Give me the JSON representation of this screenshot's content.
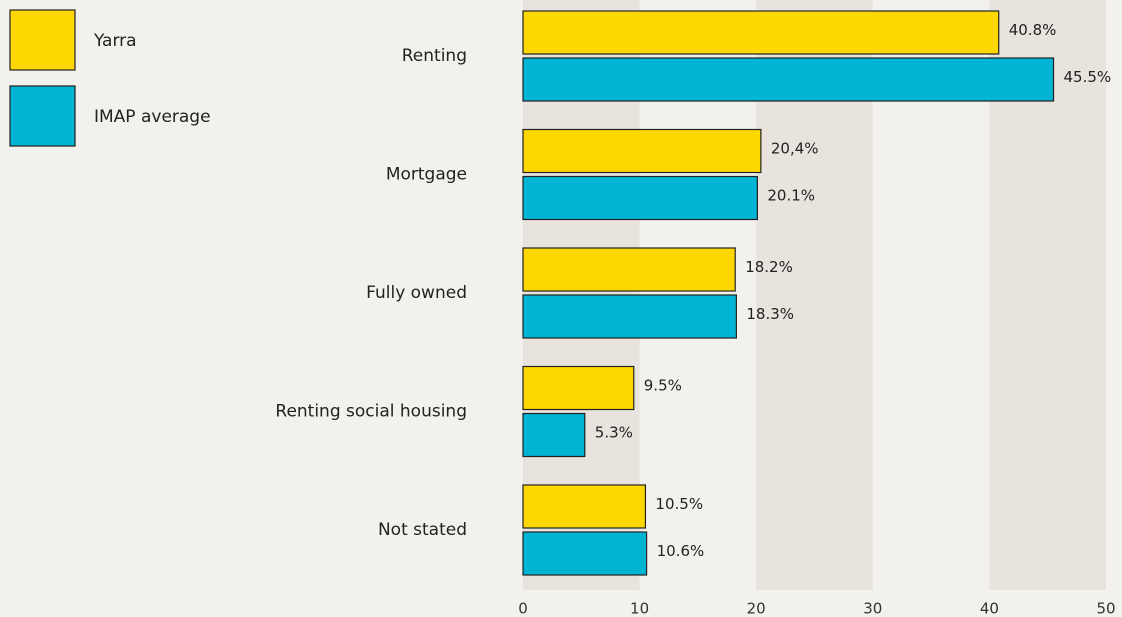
{
  "chart_data": {
    "type": "bar",
    "orientation": "horizontal",
    "categories": [
      "Renting",
      "Mortgage",
      "Fully owned",
      "Renting social housing",
      "Not stated"
    ],
    "series": [
      {
        "name": "Yarra",
        "color": "#ffd700",
        "values": [
          40.8,
          20.4,
          18.2,
          9.5,
          10.5
        ],
        "value_labels": [
          "40.8%",
          "20,4%",
          "18.2%",
          "9.5%",
          "10.5%"
        ]
      },
      {
        "name": "IMAP average",
        "color": "#00b4d4",
        "values": [
          45.5,
          20.1,
          18.3,
          5.3,
          10.6
        ],
        "value_labels": [
          "45.5%",
          "20.1%",
          "18.3%",
          "5.3%",
          "10.6%"
        ]
      }
    ],
    "xlim": [
      0,
      50
    ],
    "xticks": [
      0,
      10,
      20,
      30,
      40,
      50
    ],
    "grid": true,
    "legend": "top-left"
  }
}
